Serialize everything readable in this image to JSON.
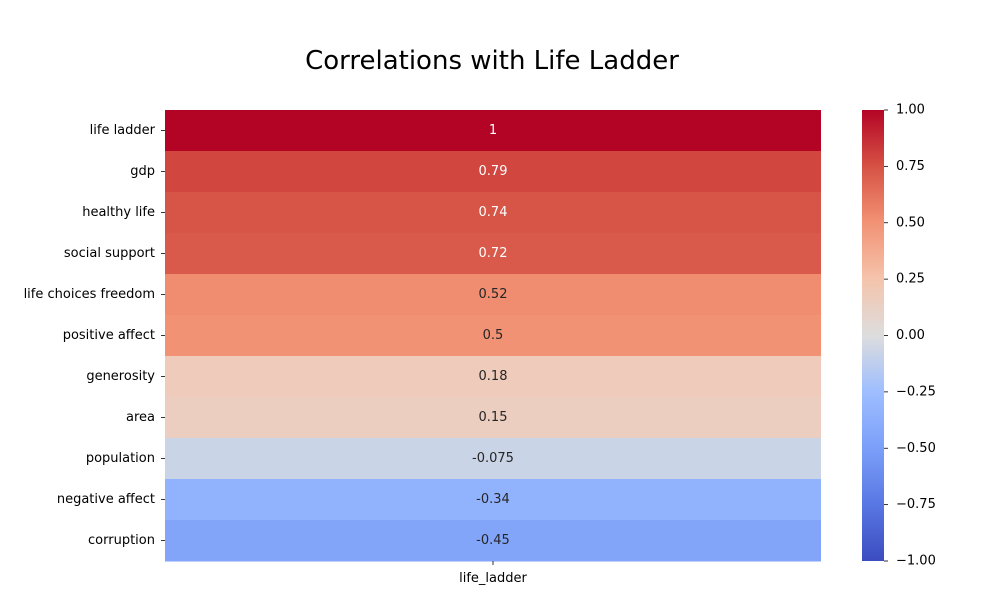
{
  "chart_data": {
    "type": "heatmap",
    "title": "Correlations with Life Ladder",
    "columns": [
      "life_ladder"
    ],
    "rows": [
      {
        "label": "life ladder",
        "value": 1,
        "display": "1"
      },
      {
        "label": "gdp",
        "value": 0.79,
        "display": "0.79"
      },
      {
        "label": "healthy life",
        "value": 0.74,
        "display": "0.74"
      },
      {
        "label": "social support",
        "value": 0.72,
        "display": "0.72"
      },
      {
        "label": "life choices freedom",
        "value": 0.52,
        "display": "0.52"
      },
      {
        "label": "positive affect",
        "value": 0.5,
        "display": "0.5"
      },
      {
        "label": "generosity",
        "value": 0.18,
        "display": "0.18"
      },
      {
        "label": "area",
        "value": 0.15,
        "display": "0.15"
      },
      {
        "label": "population",
        "value": -0.075,
        "display": "-0.075"
      },
      {
        "label": "negative affect",
        "value": -0.34,
        "display": "-0.34"
      },
      {
        "label": "corruption",
        "value": -0.45,
        "display": "-0.45"
      }
    ],
    "colorbar": {
      "colormap": "coolwarm",
      "vmin": -1.0,
      "vmax": 1.0,
      "ticks": [
        1.0,
        0.75,
        0.5,
        0.25,
        0.0,
        -0.25,
        -0.5,
        -0.75,
        -1.0
      ],
      "tick_labels": [
        "1.00",
        "0.75",
        "0.50",
        "0.25",
        "0.00",
        "−0.25",
        "−0.50",
        "−0.75",
        "−1.00"
      ]
    },
    "annotation_colors": {
      "light": "#ffffff",
      "dark": "#262626"
    }
  }
}
